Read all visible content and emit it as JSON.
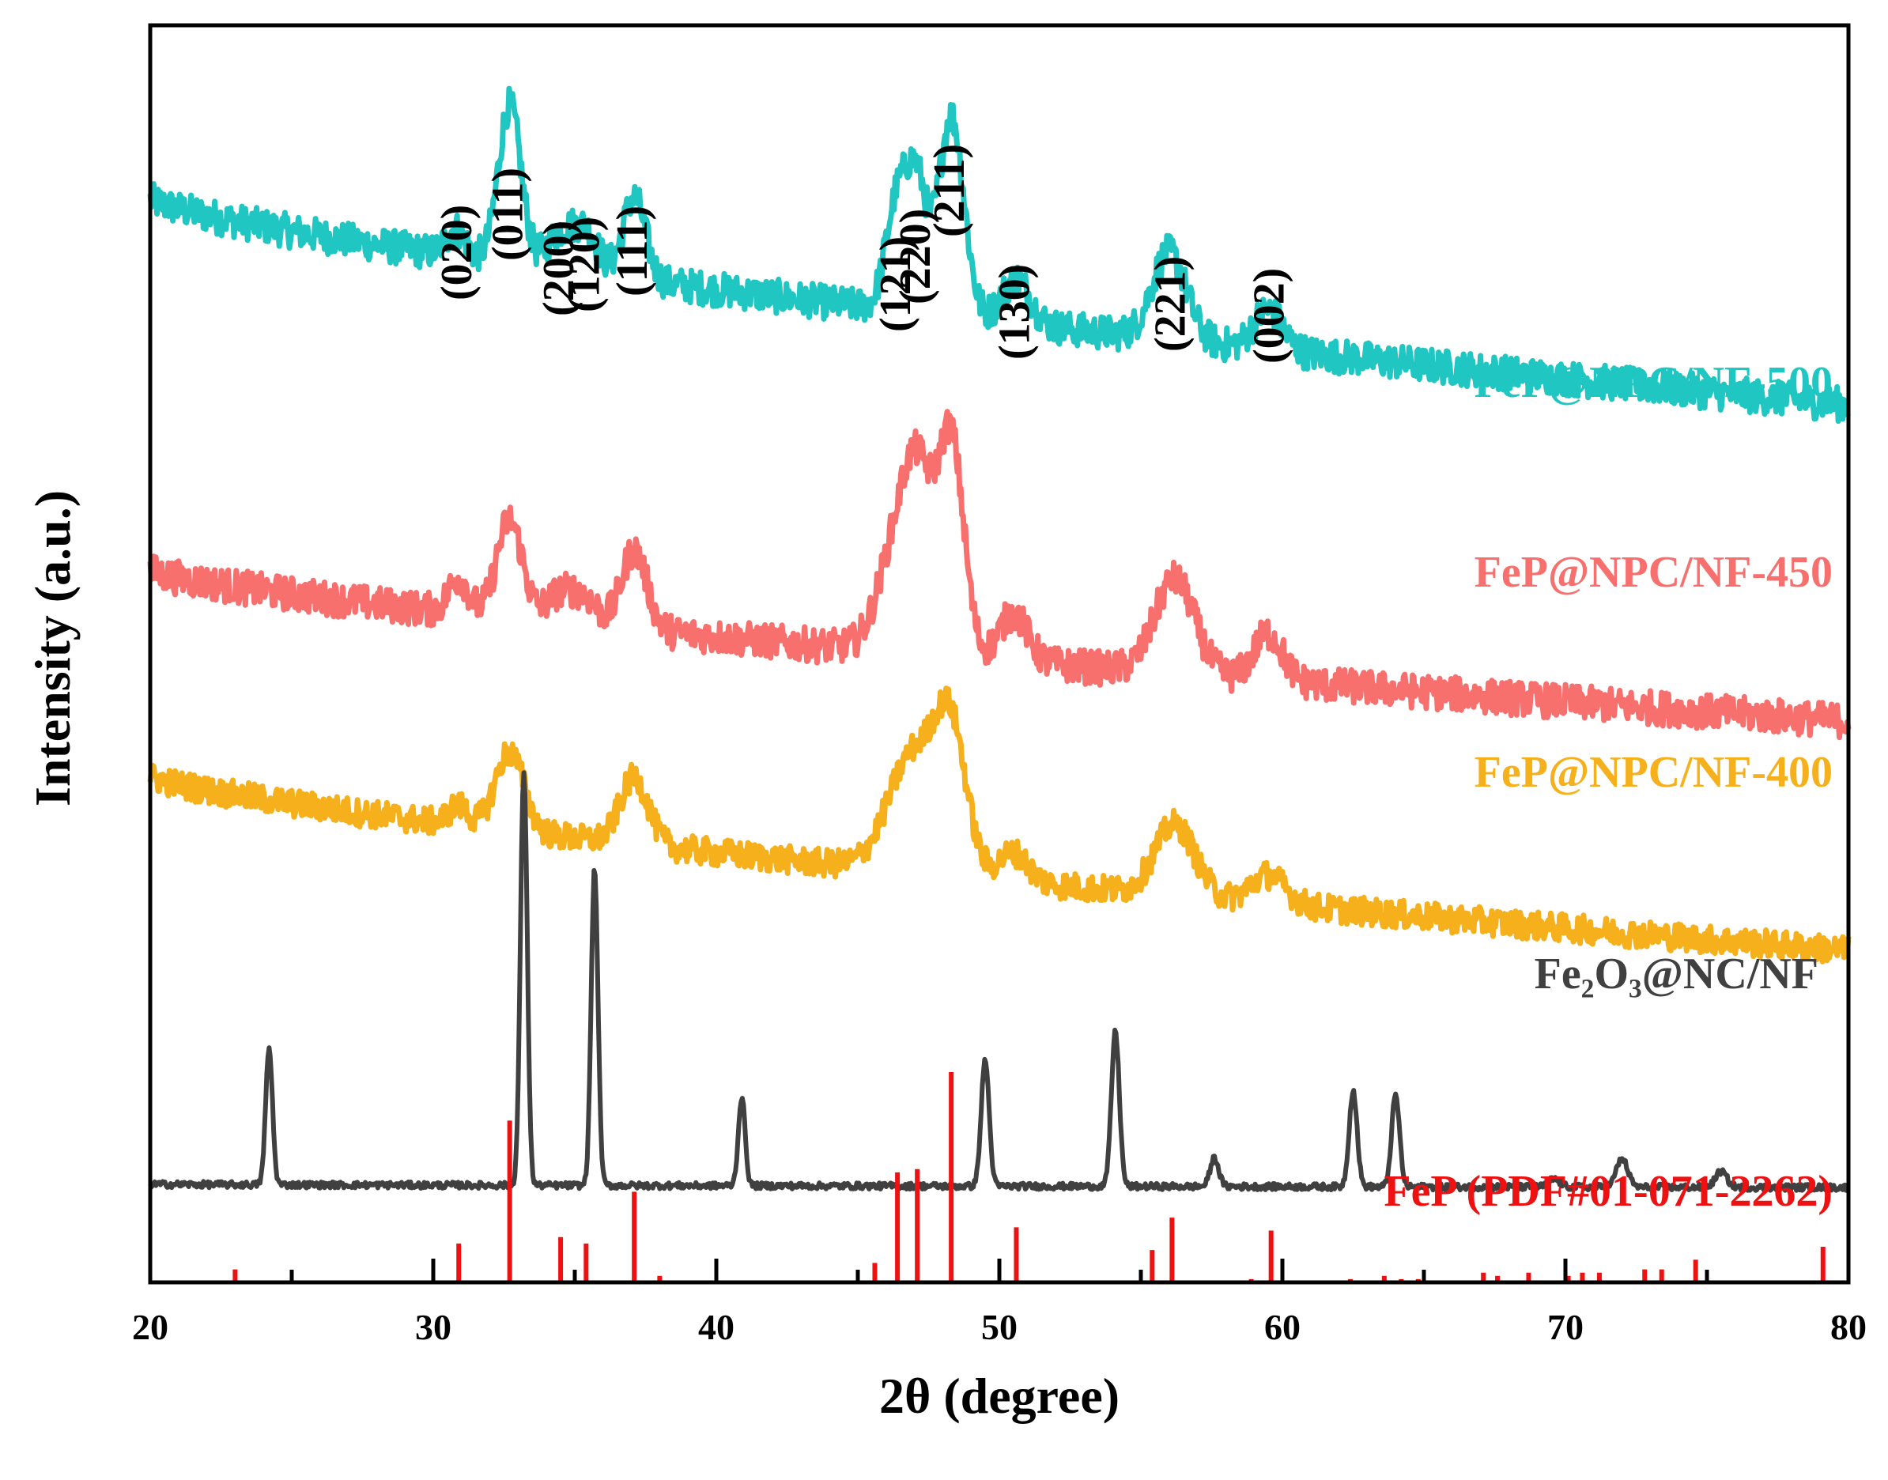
{
  "chart_data": {
    "type": "line",
    "title": "",
    "xlabel": "2θ (degree)",
    "ylabel": "Intensity (a.u.)",
    "xlim": [
      20,
      80
    ],
    "xticks": [
      "20",
      "30",
      "40",
      "50",
      "60",
      "70",
      "80"
    ],
    "grid": false,
    "legend": "inline labels, right side",
    "series": [
      {
        "name": "FeP@NPC/NF-500",
        "color": "#1fc6c2",
        "baseline": 5.55,
        "start": 6.85,
        "end": 5.55,
        "noise": 0.11,
        "peaks": [
          [
            30.8,
            0.17,
            0.35
          ],
          [
            32.7,
            1.0,
            0.4
          ],
          [
            34.5,
            0.22,
            0.5
          ],
          [
            35.4,
            0.25,
            0.45
          ],
          [
            37.1,
            0.52,
            0.4
          ],
          [
            46.4,
            0.7,
            0.4
          ],
          [
            47.1,
            0.75,
            0.35
          ],
          [
            48.3,
            1.27,
            0.45
          ],
          [
            50.6,
            0.28,
            0.5
          ],
          [
            56.0,
            0.55,
            0.6
          ],
          [
            59.5,
            0.25,
            0.5
          ]
        ]
      },
      {
        "name": "FeP@NPC/NF-450",
        "color": "#f7706e",
        "baseline": 3.55,
        "start": 4.5,
        "end": 3.55,
        "noise": 0.11,
        "peaks": [
          [
            30.9,
            0.22,
            0.35
          ],
          [
            32.7,
            0.62,
            0.45
          ],
          [
            34.5,
            0.18,
            0.5
          ],
          [
            35.4,
            0.15,
            0.45
          ],
          [
            37.1,
            0.5,
            0.45
          ],
          [
            46.5,
            0.75,
            0.7
          ],
          [
            47.2,
            0.75,
            0.5
          ],
          [
            48.3,
            1.35,
            0.45
          ],
          [
            50.5,
            0.3,
            0.5
          ],
          [
            56.2,
            0.6,
            0.7
          ],
          [
            59.5,
            0.3,
            0.5
          ]
        ]
      },
      {
        "name": "FeP@NPC/NF-400",
        "color": "#f5b01c",
        "baseline": 2.1,
        "start": 3.2,
        "end": 2.1,
        "noise": 0.09,
        "peaks": [
          [
            30.9,
            0.12,
            0.35
          ],
          [
            32.7,
            0.5,
            0.5
          ],
          [
            37.1,
            0.42,
            0.5
          ],
          [
            47.0,
            0.75,
            0.9
          ],
          [
            48.3,
            0.8,
            0.55
          ],
          [
            50.5,
            0.18,
            0.5
          ],
          [
            56.2,
            0.45,
            0.7
          ],
          [
            59.5,
            0.18,
            0.6
          ]
        ]
      },
      {
        "name": "Fe₂O₃@NC/NF",
        "color": "#404040",
        "baseline": 0.6,
        "start": 0.62,
        "end": 0.6,
        "noise": 0.02,
        "peaks": [
          [
            24.2,
            0.86,
            0.12
          ],
          [
            33.2,
            2.62,
            0.12
          ],
          [
            35.7,
            2.0,
            0.12
          ],
          [
            40.9,
            0.56,
            0.12
          ],
          [
            49.5,
            0.8,
            0.14
          ],
          [
            54.1,
            0.98,
            0.14
          ],
          [
            57.6,
            0.18,
            0.15
          ],
          [
            62.5,
            0.61,
            0.14
          ],
          [
            64.0,
            0.58,
            0.14
          ],
          [
            69.6,
            0.05,
            0.2
          ],
          [
            72.0,
            0.18,
            0.2
          ],
          [
            75.5,
            0.1,
            0.2
          ]
        ]
      }
    ],
    "reference": {
      "name": "FeP (PDF#01-071-2262)",
      "color": "#ee1111",
      "positions": [
        23.0,
        30.9,
        32.7,
        34.5,
        35.4,
        37.1,
        38.0,
        45.6,
        46.4,
        47.1,
        48.3,
        50.6,
        55.4,
        56.1,
        58.9,
        59.6,
        62.4,
        63.6,
        64.2,
        64.8,
        67.1,
        67.6,
        68.7,
        70.1,
        70.6,
        71.2,
        72.8,
        73.4,
        74.6,
        79.1
      ],
      "intensities": [
        4,
        12,
        50,
        14,
        12,
        28,
        2,
        6,
        34,
        35,
        65,
        17,
        10,
        20,
        1,
        16,
        1,
        2,
        1,
        1,
        3,
        2,
        3,
        2,
        3,
        3,
        4,
        4,
        7,
        11
      ]
    },
    "annotations": [
      {
        "text": "(020)",
        "x": 30.9
      },
      {
        "text": "(011)",
        "x": 32.7
      },
      {
        "text": "(200)",
        "x": 34.5
      },
      {
        "text": "(120)",
        "x": 35.4
      },
      {
        "text": "(111)",
        "x": 37.1
      },
      {
        "text": "(121)",
        "x": 46.4
      },
      {
        "text": "(220)",
        "x": 47.1
      },
      {
        "text": "(211)",
        "x": 48.3
      },
      {
        "text": "(130)",
        "x": 50.6
      },
      {
        "text": "(221)",
        "x": 56.1
      },
      {
        "text": "(002)",
        "x": 59.6
      }
    ]
  }
}
